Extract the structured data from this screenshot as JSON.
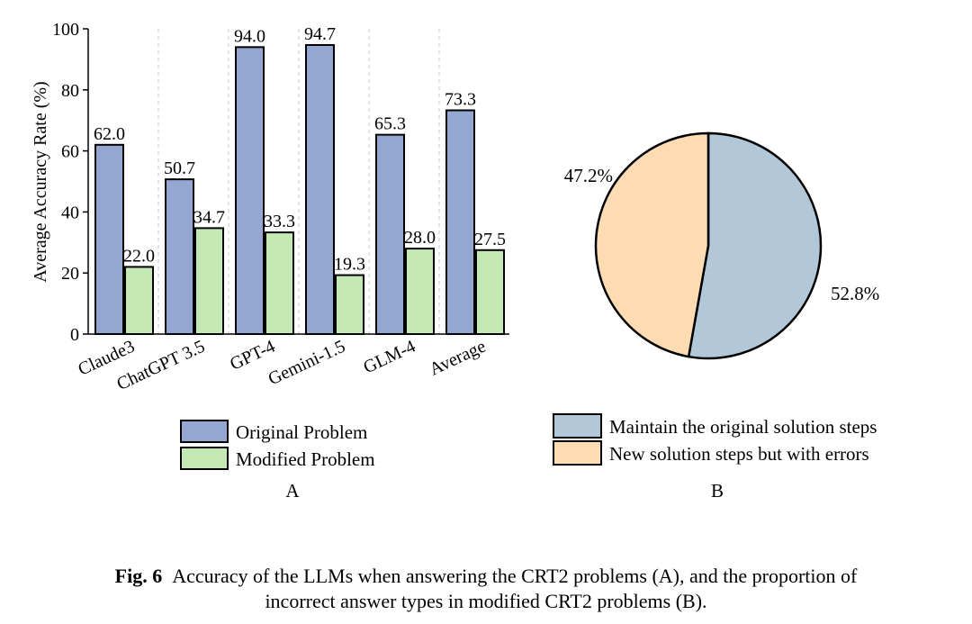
{
  "caption": {
    "label": "Fig. 6",
    "text_line1": "Accuracy of the LLMs when answering the CRT2 problems (A), and the proportion of",
    "text_line2": "incorrect answer types in modified CRT2 problems (B)."
  },
  "chart_data": [
    {
      "type": "bar",
      "panel_label": "A",
      "ylabel": "Average Accuracy Rate (%)",
      "xlabel": "",
      "ylim": [
        0,
        100
      ],
      "yticks": [
        0,
        20,
        40,
        60,
        80,
        100
      ],
      "categories": [
        "Claude3",
        "ChatGPT 3.5",
        "GPT-4",
        "Gemini-1.5",
        "GLM-4",
        "Average"
      ],
      "series": [
        {
          "name": "Original Problem",
          "values": [
            62.0,
            50.7,
            94.0,
            94.7,
            65.3,
            73.3
          ],
          "labels": [
            "62.0",
            "50.7",
            "94.0",
            "94.7",
            "65.3",
            "73.3"
          ],
          "color": "#94a7d3"
        },
        {
          "name": "Modified Problem",
          "values": [
            22.0,
            34.7,
            33.3,
            19.3,
            28.0,
            27.5
          ],
          "labels": [
            "22.0",
            "34.7",
            "33.3",
            "19.3",
            "28.0",
            "27.5"
          ],
          "color": "#c4e9b5"
        }
      ],
      "grid": "vertical dashed separators",
      "legend_placement": "bottom"
    },
    {
      "type": "pie",
      "panel_label": "B",
      "slices": [
        {
          "name": "Maintain the original solution steps",
          "value": 52.8,
          "label": "52.8%",
          "color": "#b2c7d7"
        },
        {
          "name": "New solution steps but with errors",
          "value": 47.2,
          "label": "47.2%",
          "color": "#fddcb3"
        }
      ],
      "legend_placement": "bottom"
    }
  ]
}
